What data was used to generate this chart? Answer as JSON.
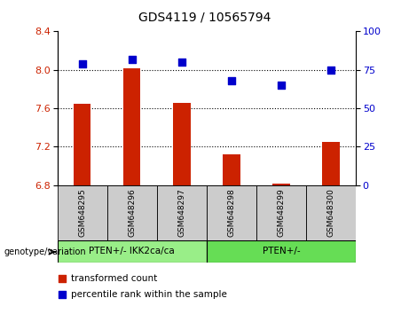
{
  "title": "GDS4119 / 10565794",
  "samples": [
    "GSM648295",
    "GSM648296",
    "GSM648297",
    "GSM648298",
    "GSM648299",
    "GSM648300"
  ],
  "bar_values": [
    7.65,
    8.02,
    7.66,
    7.12,
    6.82,
    7.25
  ],
  "bar_base": 6.8,
  "percentile_values": [
    79,
    82,
    80,
    68,
    65,
    75
  ],
  "ylim_left": [
    6.8,
    8.4
  ],
  "ylim_right": [
    0,
    100
  ],
  "yticks_left": [
    6.8,
    7.2,
    7.6,
    8.0,
    8.4
  ],
  "yticks_right": [
    0,
    25,
    50,
    75,
    100
  ],
  "bar_color": "#cc2200",
  "dot_color": "#0000cc",
  "group1_label": "PTEN+/- IKK2ca/ca",
  "group2_label": "PTEN+/-",
  "group1_color": "#99ee88",
  "group2_color": "#66dd55",
  "genotype_label": "genotype/variation",
  "legend1": "transformed count",
  "legend2": "percentile rank within the sample",
  "tick_bg_color": "#cccccc",
  "hlines": [
    8.0,
    7.6,
    7.2
  ],
  "dot_size": 35,
  "bar_width": 0.35
}
